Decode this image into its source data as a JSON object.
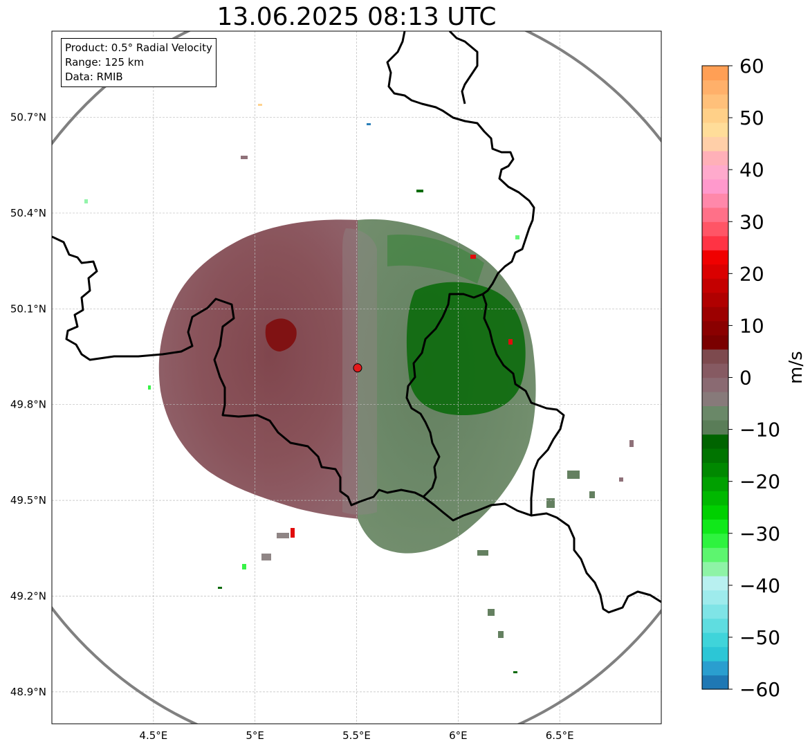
{
  "title": "13.06.2025 08:13 UTC",
  "info": {
    "product": "Product: 0.5° Radial Velocity",
    "range": "Range: 125 km",
    "source": "Data: RMIB"
  },
  "map": {
    "lon_range": [
      4.0,
      7.0
    ],
    "lat_range": [
      48.8,
      50.97
    ],
    "lon_ticks": [
      {
        "value": 4.5,
        "label": "4.5°E"
      },
      {
        "value": 5.0,
        "label": "5°E"
      },
      {
        "value": 5.5,
        "label": "5.5°E"
      },
      {
        "value": 6.0,
        "label": "6°E"
      },
      {
        "value": 6.5,
        "label": "6.5°E"
      }
    ],
    "lat_ticks": [
      {
        "value": 48.9,
        "label": "48.9°N"
      },
      {
        "value": 49.2,
        "label": "49.2°N"
      },
      {
        "value": 49.5,
        "label": "49.5°N"
      },
      {
        "value": 49.8,
        "label": "49.8°N"
      },
      {
        "value": 50.1,
        "label": "50.1°N"
      },
      {
        "value": 50.4,
        "label": "50.4°N"
      },
      {
        "value": 50.7,
        "label": "50.7°N"
      }
    ],
    "radar_site": {
      "lon": 5.505,
      "lat": 49.915
    },
    "grid": true,
    "colors": {
      "range_ring": "#808080",
      "border": "#000000",
      "grid": "#bbbbbb",
      "site_marker": "#e41a1c"
    }
  },
  "colorbar": {
    "label": "m/s",
    "min": -60,
    "max": 60,
    "ticks": [
      60,
      50,
      40,
      30,
      20,
      10,
      0,
      -10,
      -20,
      -30,
      -40,
      -50,
      -60
    ],
    "tick_labels": [
      "60",
      "50",
      "40",
      "30",
      "20",
      "10",
      "0",
      "−10",
      "−20",
      "−30",
      "−40",
      "−50",
      "−60"
    ],
    "colors": [
      "#1f78b4",
      "#2a9ecf",
      "#2cc6d6",
      "#3fd4da",
      "#5fdde0",
      "#7fe4e6",
      "#9eebec",
      "#b8f0f0",
      "#8ef3a6",
      "#5df56f",
      "#2ef33f",
      "#10e81a",
      "#00d000",
      "#00b800",
      "#00a000",
      "#008800",
      "#007400",
      "#006400",
      "#5a7d58",
      "#6a8868",
      "#877a7a",
      "#8a6a72",
      "#865a62",
      "#7d4a4e",
      "#7a0000",
      "#8a0000",
      "#9c0000",
      "#b00000",
      "#c40000",
      "#da0000",
      "#f00000",
      "#ff3344",
      "#ff5566",
      "#ff7088",
      "#ff88aa",
      "#ff99cc",
      "#ffaacc",
      "#ffb0b8",
      "#ffcfa8",
      "#ffdd99",
      "#ffd088",
      "#ffc07a",
      "#ffb06a",
      "#ff9f55"
    ]
  }
}
